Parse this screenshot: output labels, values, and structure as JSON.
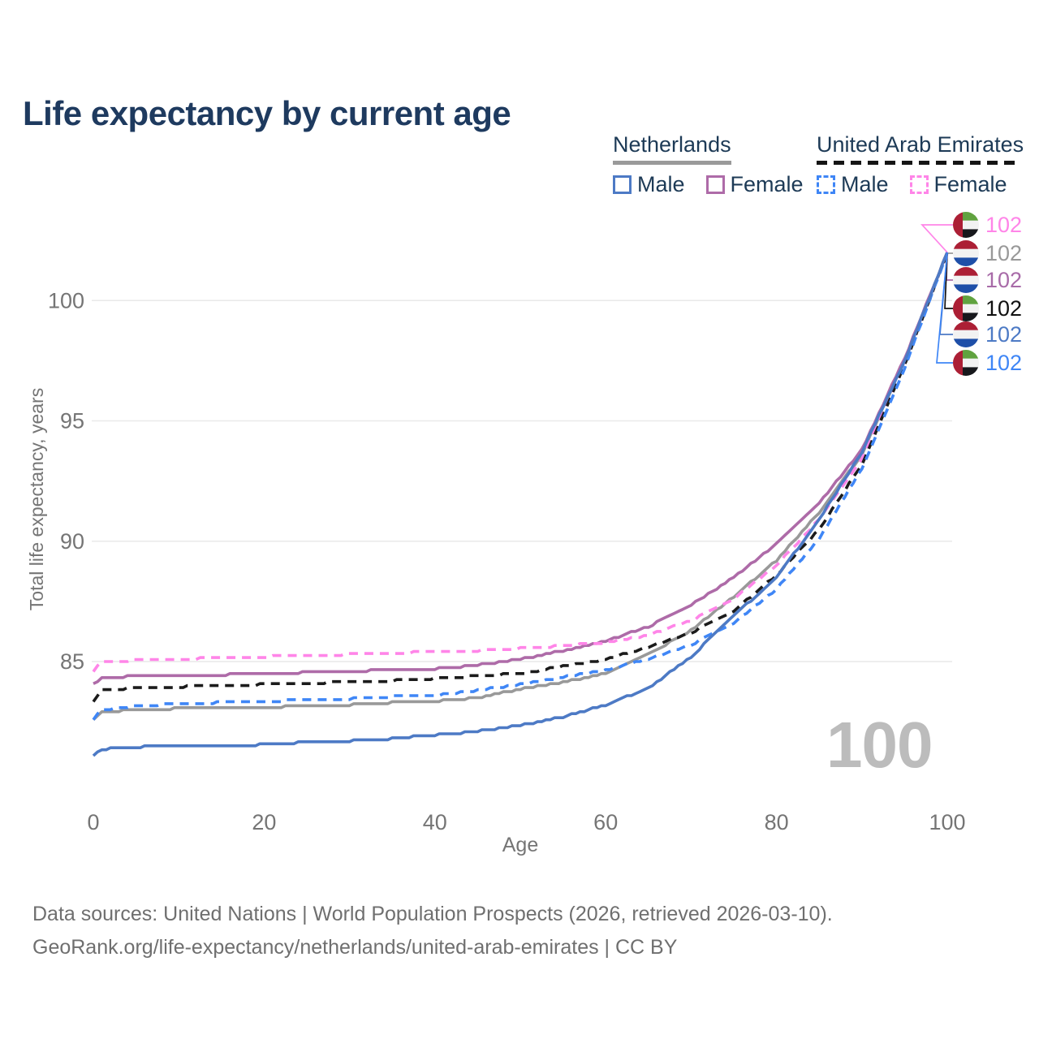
{
  "title": "Life expectancy by current age",
  "watermark": "100",
  "legend": {
    "netherlands": {
      "label": "Netherlands",
      "male_label": "Male",
      "female_label": "Female",
      "style": "solid",
      "underline_color": "#9a9a9a"
    },
    "uae": {
      "label": "United Arab Emirates",
      "male_label": "Male",
      "female_label": "Female",
      "style": "dashed",
      "underline_color": "#151515"
    }
  },
  "colors": {
    "title_navy": "#1e3a5f",
    "axis_gray": "#757575",
    "gridline": "#e9e9e9",
    "nl_male": "#4d7ac5",
    "nl_female": "#ae6ba8",
    "nl_all": "#999999",
    "uae_male": "#3f86f6",
    "uae_female": "#ff85e8",
    "uae_all": "#1b1b1b"
  },
  "y_axis": {
    "title": "Total life expectancy, years",
    "ticks": [
      85,
      90,
      95,
      100
    ]
  },
  "x_axis": {
    "title": "Age",
    "ticks": [
      0,
      20,
      40,
      60,
      80,
      100
    ]
  },
  "end_labels": [
    {
      "flag": "uae",
      "country": "United Arab Emirates",
      "series": "uae_female",
      "value": "102",
      "color": "#ff85e8"
    },
    {
      "flag": "nl",
      "country": "Netherlands",
      "series": "nl_all",
      "value": "102",
      "color": "#999999"
    },
    {
      "flag": "nl",
      "country": "Netherlands",
      "series": "nl_female",
      "value": "102",
      "color": "#a86ba8"
    },
    {
      "flag": "uae",
      "country": "United Arab Emirates",
      "series": "uae_all",
      "value": "102",
      "color": "#111111"
    },
    {
      "flag": "nl",
      "country": "Netherlands",
      "series": "nl_male",
      "value": "102",
      "color": "#4d7ac5"
    },
    {
      "flag": "uae",
      "country": "United Arab Emirates",
      "series": "uae_male",
      "value": "102",
      "color": "#3f86f6"
    }
  ],
  "footer": {
    "line1": "Data sources: United Nations | World Population Prospects (2026, retrieved 2026-03-10).",
    "line2": "GeoRank.org/life-expectancy/netherlands/united-arab-emirates | CC BY"
  },
  "chart_data": {
    "type": "line",
    "title": "Life expectancy by current age",
    "xlabel": "Age",
    "ylabel": "Total life expectancy, years",
    "xlim": [
      0,
      100
    ],
    "ylim": [
      80.5,
      103
    ],
    "y_gridlines": [
      85,
      90,
      95,
      100
    ],
    "legend_position": "top-right",
    "x": [
      0,
      1,
      5,
      10,
      15,
      20,
      25,
      30,
      35,
      40,
      45,
      50,
      55,
      60,
      65,
      70,
      75,
      80,
      85,
      90,
      95,
      100
    ],
    "series": [
      {
        "key": "nl_all",
        "name": "Netherlands All",
        "style": "solid",
        "color": "#999999",
        "values": [
          82.6,
          82.9,
          83.0,
          83.05,
          83.05,
          83.1,
          83.15,
          83.2,
          83.3,
          83.35,
          83.5,
          83.85,
          84.15,
          84.5,
          85.3,
          86.3,
          87.7,
          89.2,
          91.2,
          93.6,
          97.5,
          102
        ]
      },
      {
        "key": "nl_female",
        "name": "Netherlands Female",
        "style": "solid",
        "color": "#ae6ba8",
        "values": [
          84.1,
          84.3,
          84.4,
          84.4,
          84.45,
          84.5,
          84.55,
          84.6,
          84.65,
          84.7,
          84.85,
          85.1,
          85.45,
          85.85,
          86.45,
          87.35,
          88.5,
          89.9,
          91.6,
          93.8,
          97.6,
          102
        ]
      },
      {
        "key": "uae_female",
        "name": "United Arab Emirates Female",
        "style": "dashed",
        "color": "#ff85e8",
        "values": [
          84.6,
          85.0,
          85.05,
          85.1,
          85.15,
          85.2,
          85.25,
          85.3,
          85.35,
          85.4,
          85.45,
          85.55,
          85.65,
          85.8,
          86.1,
          86.7,
          87.6,
          89.0,
          90.9,
          93.4,
          97.4,
          102
        ]
      },
      {
        "key": "uae_all",
        "name": "United Arab Emirates All",
        "style": "dashed",
        "color": "#1b1b1b",
        "values": [
          83.3,
          83.8,
          83.9,
          83.95,
          84.0,
          84.05,
          84.1,
          84.15,
          84.2,
          84.3,
          84.4,
          84.5,
          84.8,
          85.1,
          85.6,
          86.2,
          87.1,
          88.6,
          90.5,
          93.2,
          97.3,
          102
        ]
      },
      {
        "key": "uae_male",
        "name": "United Arab Emirates Male",
        "style": "dashed",
        "color": "#3f86f6",
        "values": [
          82.6,
          83.0,
          83.15,
          83.25,
          83.3,
          83.35,
          83.4,
          83.45,
          83.55,
          83.6,
          83.8,
          84.05,
          84.35,
          84.65,
          85.1,
          85.7,
          86.6,
          88.0,
          90.1,
          93.0,
          97.2,
          102
        ]
      },
      {
        "key": "nl_male",
        "name": "Netherlands Male",
        "style": "solid",
        "color": "#4d7ac5",
        "values": [
          81.1,
          81.35,
          81.45,
          81.5,
          81.5,
          81.55,
          81.65,
          81.7,
          81.8,
          81.95,
          82.1,
          82.35,
          82.7,
          83.2,
          83.9,
          85.2,
          86.9,
          88.5,
          90.9,
          93.7,
          97.5,
          102
        ]
      }
    ],
    "end_value_age": 100,
    "end_value_all_series": 102
  }
}
